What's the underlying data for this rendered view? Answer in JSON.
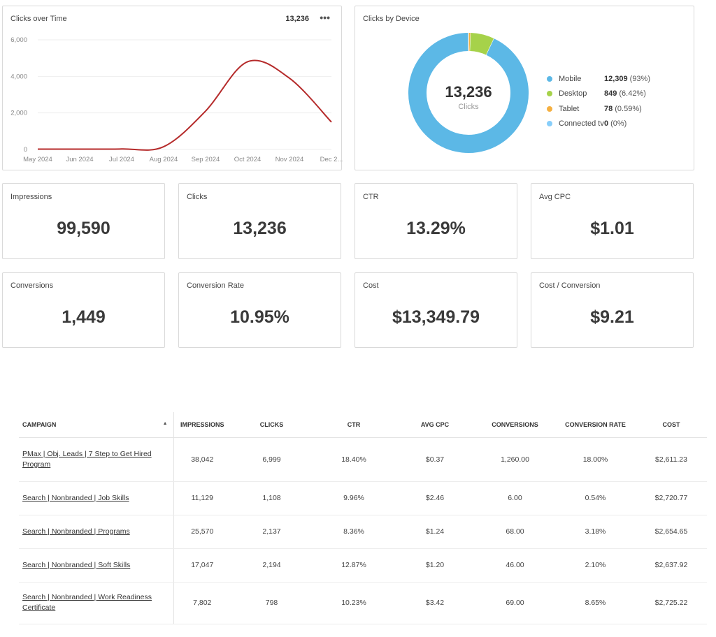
{
  "clicks_over_time": {
    "title": "Clicks over Time",
    "total": "13,236",
    "more_icon": "more-horizontal-icon",
    "line_color": "#b52a2a",
    "chart_data": {
      "type": "line",
      "x": [
        "May 2024",
        "Jun 2024",
        "Jul 2024",
        "Aug 2024",
        "Sep 2024",
        "Oct 2024",
        "Nov 2024",
        "Dec 2..."
      ],
      "series": [
        {
          "values": [
            20,
            20,
            30,
            150,
            2100,
            4800,
            3900,
            1500
          ]
        }
      ],
      "y_ticks": [
        "6,000",
        "4,000",
        "2,000",
        "0"
      ],
      "ylim": [
        0,
        6000
      ],
      "grid": true
    }
  },
  "clicks_by_device": {
    "title": "Clicks by Device",
    "center_value": "13,236",
    "center_label": "Clicks",
    "chart_data": {
      "type": "pie",
      "variant": "donut",
      "categories": [
        "Mobile",
        "Desktop",
        "Tablet",
        "Connected tv"
      ],
      "values": [
        12309,
        849,
        78,
        0
      ],
      "colors": [
        "#5cb8e6",
        "#a6d24a",
        "#f5b041",
        "#87cefa"
      ]
    },
    "legend": [
      {
        "name": "Mobile",
        "value": "12,309",
        "pct": "(93%)",
        "color": "#5cb8e6"
      },
      {
        "name": "Desktop",
        "value": "849",
        "pct": "(6.42%)",
        "color": "#a6d24a"
      },
      {
        "name": "Tablet",
        "value": "78",
        "pct": "(0.59%)",
        "color": "#f5b041"
      },
      {
        "name": "Connected tv",
        "value": "0",
        "pct": "(0%)",
        "color": "#87cefa"
      }
    ]
  },
  "kpis": [
    {
      "label": "Impressions",
      "value": "99,590"
    },
    {
      "label": "Clicks",
      "value": "13,236"
    },
    {
      "label": "CTR",
      "value": "13.29%"
    },
    {
      "label": "Avg CPC",
      "value": "$1.01"
    },
    {
      "label": "Conversions",
      "value": "1,449"
    },
    {
      "label": "Conversion Rate",
      "value": "10.95%"
    },
    {
      "label": "Cost",
      "value": "$13,349.79"
    },
    {
      "label": "Cost / Conversion",
      "value": "$9.21"
    }
  ],
  "table": {
    "sort_icon": "sort-ascending-icon",
    "headers": [
      "Campaign",
      "Impressions",
      "Clicks",
      "CTR",
      "Avg CPC",
      "Conversions",
      "Conversion Rate",
      "Cost"
    ],
    "rows": [
      {
        "campaign": "PMax | Obj. Leads | 7 Step to Get Hired Program",
        "impressions": "38,042",
        "clicks": "6,999",
        "ctr": "18.40%",
        "avg_cpc": "$0.37",
        "conversions": "1,260.00",
        "conversion_rate": "18.00%",
        "cost": "$2,611.23"
      },
      {
        "campaign": "Search | Nonbranded | Job Skills",
        "impressions": "11,129",
        "clicks": "1,108",
        "ctr": "9.96%",
        "avg_cpc": "$2.46",
        "conversions": "6.00",
        "conversion_rate": "0.54%",
        "cost": "$2,720.77"
      },
      {
        "campaign": "Search | Nonbranded | Programs",
        "impressions": "25,570",
        "clicks": "2,137",
        "ctr": "8.36%",
        "avg_cpc": "$1.24",
        "conversions": "68.00",
        "conversion_rate": "3.18%",
        "cost": "$2,654.65"
      },
      {
        "campaign": "Search | Nonbranded | Soft Skills",
        "impressions": "17,047",
        "clicks": "2,194",
        "ctr": "12.87%",
        "avg_cpc": "$1.20",
        "conversions": "46.00",
        "conversion_rate": "2.10%",
        "cost": "$2,637.92"
      },
      {
        "campaign": "Search | Nonbranded | Work Readiness Certificate",
        "impressions": "7,802",
        "clicks": "798",
        "ctr": "10.23%",
        "avg_cpc": "$3.42",
        "conversions": "69.00",
        "conversion_rate": "8.65%",
        "cost": "$2,725.22"
      }
    ]
  }
}
